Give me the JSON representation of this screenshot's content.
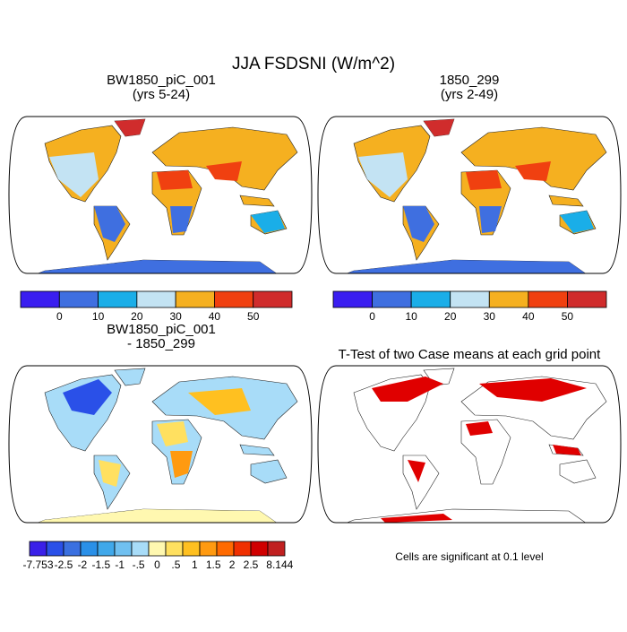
{
  "title": "JJA FSDSNI (W/m^2)",
  "panels": [
    {
      "lines": [
        "BW1850_piC_001",
        "(yrs 5-24)"
      ]
    },
    {
      "lines": [
        "1850_299",
        "(yrs 2-49)"
      ]
    },
    {
      "lines": [
        "BW1850_piC_001",
        "- 1850_299"
      ]
    },
    {
      "lines": [
        "T-Test of two Case means at each grid point"
      ]
    }
  ],
  "colorbars": [
    {
      "colors": [
        "#3a1ef0",
        "#3f6fe0",
        "#1aaee8",
        "#c3e3f3",
        "#f5b020",
        "#f04010",
        "#d02c2c"
      ],
      "labels": [
        "0",
        "10",
        "20",
        "30",
        "40",
        "50"
      ]
    },
    {
      "colors": [
        "#3a1ef0",
        "#3f6fe0",
        "#1aaee8",
        "#c3e3f3",
        "#f5b020",
        "#f04010",
        "#d02c2c"
      ],
      "labels": [
        "0",
        "10",
        "20",
        "30",
        "40",
        "50"
      ]
    },
    {
      "colors": [
        "#3a20e8",
        "#2a50e8",
        "#3a70e0",
        "#2a90e8",
        "#40a8ea",
        "#70c0f0",
        "#a8dcf8",
        "#fff8b0",
        "#ffe060",
        "#ffc020",
        "#ff9a10",
        "#ff6a00",
        "#f03000",
        "#d00000",
        "#c02020"
      ],
      "labels": [
        "-7.753",
        "-2.5",
        "-2",
        "-1.5",
        "-1",
        "-.5",
        "0",
        ".5",
        "1",
        "1.5",
        "2",
        "2.5",
        "8.144"
      ]
    }
  ],
  "note": "Cells are significant at 0.1 level"
}
